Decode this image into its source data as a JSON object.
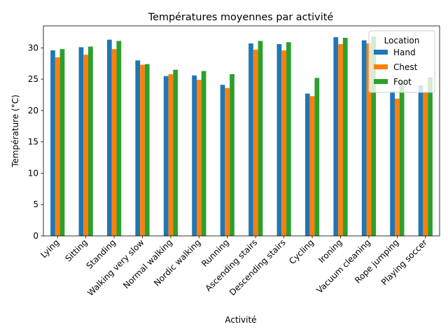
{
  "chart_data": {
    "type": "bar",
    "title": "Températures moyennes par activité",
    "xlabel": "Activité",
    "ylabel": "Température (°C)",
    "ylim": [
      0,
      33.5
    ],
    "yticks": [
      0,
      5,
      10,
      15,
      20,
      25,
      30
    ],
    "grid": false,
    "legend": {
      "title": "Location",
      "placement": "top-right"
    },
    "categories": [
      "Lying",
      "Sitting",
      "Standing",
      "Walking very slow",
      "Normal walking",
      "Nordic walking",
      "Running",
      "Ascending stairs",
      "Descending stairs",
      "Cycling",
      "Ironing",
      "Vacuum cleaning",
      "Rope jumping",
      "Playing soccer"
    ],
    "series": [
      {
        "name": "Hand",
        "color": "#1f77b4",
        "values": [
          29.6,
          30.1,
          31.3,
          28.0,
          25.5,
          25.6,
          24.1,
          30.7,
          30.6,
          22.7,
          31.7,
          31.2,
          23.1,
          24.0
        ]
      },
      {
        "name": "Chest",
        "color": "#ff7f0e",
        "values": [
          28.5,
          28.9,
          29.8,
          27.3,
          25.8,
          24.9,
          23.6,
          29.7,
          29.6,
          22.3,
          30.6,
          30.7,
          21.9,
          23.0
        ]
      },
      {
        "name": "Foot",
        "color": "#2ca02c",
        "values": [
          29.8,
          30.2,
          31.1,
          27.4,
          26.5,
          26.3,
          25.8,
          31.1,
          30.9,
          25.2,
          31.6,
          31.8,
          24.5,
          25.3
        ]
      }
    ]
  }
}
